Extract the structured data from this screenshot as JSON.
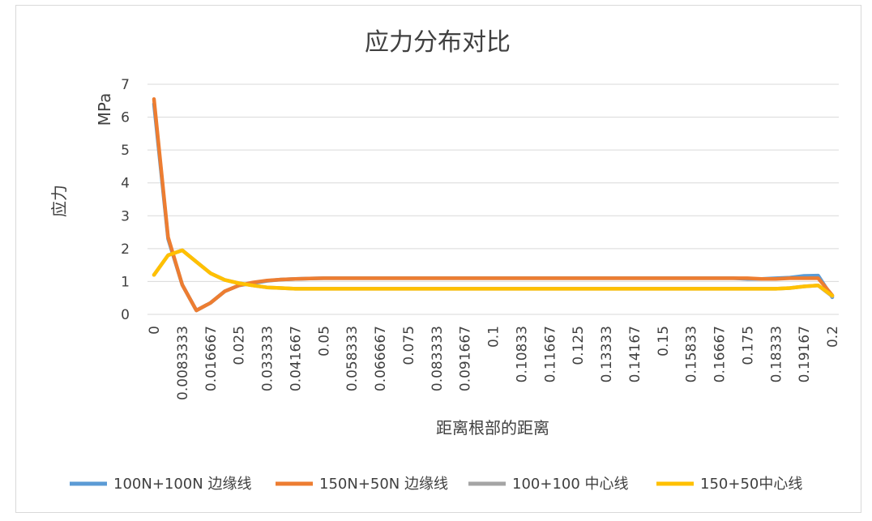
{
  "chart_data": {
    "type": "line",
    "title": "应力分布对比",
    "xlabel": "距离根部的距离",
    "ylabel": "应力",
    "yunit": "MPa",
    "ylim": [
      0,
      7
    ],
    "yticks": [
      "0",
      "1",
      "2",
      "3",
      "4",
      "5",
      "6",
      "7"
    ],
    "x": [
      0,
      0.0041667,
      0.0083333,
      0.0125,
      0.016667,
      0.020833,
      0.025,
      0.029167,
      0.033333,
      0.0375,
      0.041667,
      0.045833,
      0.05,
      0.054167,
      0.058333,
      0.0625,
      0.066667,
      0.070833,
      0.075,
      0.079167,
      0.083333,
      0.0875,
      0.091667,
      0.095833,
      0.1,
      0.10417,
      0.10833,
      0.1125,
      0.11667,
      0.12083,
      0.125,
      0.12917,
      0.13333,
      0.1375,
      0.14167,
      0.14583,
      0.15,
      0.15417,
      0.15833,
      0.1625,
      0.16667,
      0.17083,
      0.175,
      0.17917,
      0.18333,
      0.1875,
      0.19167,
      0.19583,
      0.2
    ],
    "categories": [
      "0",
      "0.0083333",
      "0.016667",
      "0.025",
      "0.033333",
      "0.041667",
      "0.05",
      "0.058333",
      "0.066667",
      "0.075",
      "0.083333",
      "0.091667",
      "0.1",
      "0.10833",
      "0.11667",
      "0.125",
      "0.13333",
      "0.14167",
      "0.15",
      "0.15833",
      "0.16667",
      "0.175",
      "0.18333",
      "0.19167",
      "0.2"
    ],
    "series": [
      {
        "name": "100N+100N 边缘线",
        "color": "#5b9bd5",
        "values": [
          6.4,
          2.3,
          0.9,
          0.12,
          0.35,
          0.7,
          0.88,
          0.95,
          1.02,
          1.06,
          1.08,
          1.09,
          1.1,
          1.1,
          1.1,
          1.1,
          1.1,
          1.1,
          1.1,
          1.1,
          1.1,
          1.1,
          1.1,
          1.1,
          1.1,
          1.1,
          1.1,
          1.1,
          1.1,
          1.1,
          1.1,
          1.1,
          1.1,
          1.1,
          1.1,
          1.1,
          1.1,
          1.1,
          1.1,
          1.1,
          1.1,
          1.1,
          1.08,
          1.08,
          1.1,
          1.12,
          1.17,
          1.18,
          0.52
        ]
      },
      {
        "name": "150N+50N 边缘线",
        "color": "#ed7d31",
        "values": [
          6.55,
          2.35,
          0.9,
          0.12,
          0.35,
          0.7,
          0.88,
          0.97,
          1.03,
          1.06,
          1.08,
          1.09,
          1.1,
          1.1,
          1.1,
          1.1,
          1.1,
          1.1,
          1.1,
          1.1,
          1.1,
          1.1,
          1.1,
          1.1,
          1.1,
          1.1,
          1.1,
          1.1,
          1.1,
          1.1,
          1.1,
          1.1,
          1.1,
          1.1,
          1.1,
          1.1,
          1.1,
          1.1,
          1.1,
          1.1,
          1.1,
          1.1,
          1.1,
          1.08,
          1.08,
          1.1,
          1.1,
          1.1,
          0.58
        ]
      },
      {
        "name": "100+100 中心线",
        "color": "#a5a5a5",
        "values": [
          1.2,
          1.8,
          1.95,
          1.6,
          1.25,
          1.05,
          0.95,
          0.88,
          0.82,
          0.8,
          0.78,
          0.78,
          0.78,
          0.78,
          0.78,
          0.78,
          0.78,
          0.78,
          0.78,
          0.78,
          0.78,
          0.78,
          0.78,
          0.78,
          0.78,
          0.78,
          0.78,
          0.78,
          0.78,
          0.78,
          0.78,
          0.78,
          0.78,
          0.78,
          0.78,
          0.78,
          0.78,
          0.78,
          0.78,
          0.78,
          0.78,
          0.78,
          0.78,
          0.78,
          0.78,
          0.8,
          0.85,
          0.88,
          0.55
        ]
      },
      {
        "name": "150+50中心线",
        "color": "#ffc000",
        "values": [
          1.2,
          1.8,
          1.95,
          1.6,
          1.25,
          1.05,
          0.95,
          0.88,
          0.82,
          0.8,
          0.78,
          0.78,
          0.78,
          0.78,
          0.78,
          0.78,
          0.78,
          0.78,
          0.78,
          0.78,
          0.78,
          0.78,
          0.78,
          0.78,
          0.78,
          0.78,
          0.78,
          0.78,
          0.78,
          0.78,
          0.78,
          0.78,
          0.78,
          0.78,
          0.78,
          0.78,
          0.78,
          0.78,
          0.78,
          0.78,
          0.78,
          0.78,
          0.78,
          0.78,
          0.78,
          0.8,
          0.85,
          0.88,
          0.57
        ]
      }
    ],
    "grid": true,
    "legend_position": "bottom"
  }
}
